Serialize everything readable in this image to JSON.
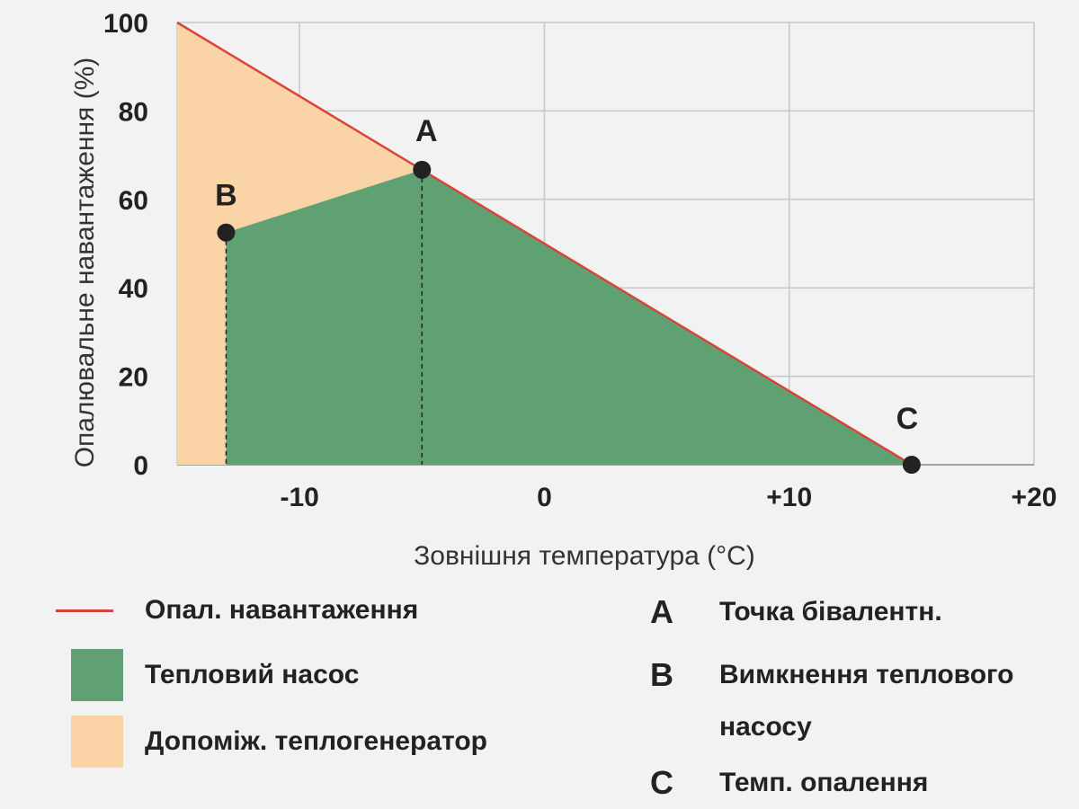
{
  "chart_data": {
    "type": "area",
    "xlabel": "Зовнішня температура (°C)",
    "ylabel": "Опалювальне навантаження (%)",
    "xlim": [
      -15,
      20
    ],
    "ylim": [
      0,
      100
    ],
    "x_ticks": [
      -10,
      0,
      10,
      20
    ],
    "x_tick_labels": [
      "-10",
      "0",
      "+10",
      "+20"
    ],
    "y_ticks": [
      0,
      20,
      40,
      60,
      80,
      100
    ],
    "y_tick_labels": [
      "0",
      "20",
      "40",
      "60",
      "80",
      "100"
    ],
    "grid": true,
    "load_line": {
      "name": "Опал. навантаження",
      "x": [
        -15,
        15
      ],
      "y": [
        100,
        0
      ]
    },
    "heat_pump_area": {
      "name": "Тепловий насос",
      "x": [
        -13,
        -13,
        -5,
        15
      ],
      "y": [
        0,
        52.5,
        66.7,
        0
      ]
    },
    "auxiliary_area": {
      "name": "Допоміж. теплогенератор",
      "x": [
        -15,
        -15,
        -13,
        -13,
        -5
      ],
      "y": [
        0,
        100,
        0,
        52.5,
        66.7
      ]
    },
    "points": [
      {
        "label": "A",
        "x": -5,
        "y": 66.7
      },
      {
        "label": "B",
        "x": -13,
        "y": 52.5
      },
      {
        "label": "C",
        "x": 15,
        "y": 0
      }
    ]
  },
  "colors": {
    "load_line": "#d9443a",
    "heat_pump": "#5fa172",
    "auxiliary": "#fad3a6",
    "grid": "#c8c8c8",
    "point": "#222222"
  },
  "legend": {
    "series": [
      {
        "key": "load",
        "label": "Опал. навантаження"
      },
      {
        "key": "heat_pump",
        "label": "Тепловий насос"
      },
      {
        "key": "auxiliary",
        "label": "Допоміж. теплогенератор"
      }
    ],
    "points": [
      {
        "letter": "A",
        "label": "Точка бівалентн."
      },
      {
        "letter": "B",
        "label": "Вимкнення теплового насосу"
      },
      {
        "letter": "C",
        "label": "Темп. опалення"
      }
    ]
  }
}
